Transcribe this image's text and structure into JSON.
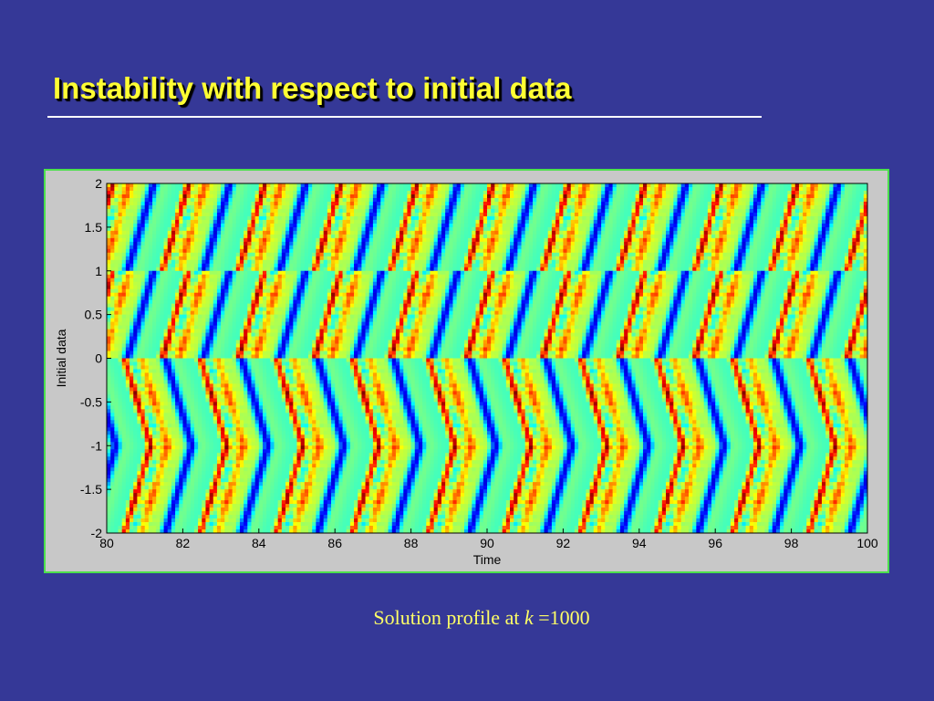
{
  "slide": {
    "title": "Instability with respect to initial data",
    "caption": {
      "prefix": "Solution profile at ",
      "variable": "k",
      "suffix": " =1000"
    }
  },
  "colors": {
    "background": "#353897",
    "title": "#ffff33",
    "caption": "#ffff66",
    "frame_border": "#4ce04c",
    "colormap": "jet"
  },
  "chart_data": {
    "type": "heatmap",
    "title": "",
    "xlabel": "Time",
    "ylabel": "Initial data",
    "xlim": [
      80,
      100
    ],
    "ylim": [
      -2,
      2
    ],
    "x_ticks": [
      80,
      82,
      84,
      86,
      88,
      90,
      92,
      94,
      96,
      98,
      100
    ],
    "y_ticks": [
      2,
      1.5,
      1,
      0.5,
      0,
      -0.5,
      -1,
      -1.5,
      -2
    ],
    "y_tick_labels": [
      "2",
      "1.5",
      "1",
      "0.5",
      "0",
      "-0.5",
      "-1",
      "-1.5",
      "-2"
    ],
    "colormap": "jet",
    "period": 2,
    "bands": [
      {
        "y_range": [
          1.0,
          2.0
        ],
        "phase": 0.0,
        "sign": 1
      },
      {
        "y_range": [
          0.0,
          1.0
        ],
        "phase": 0.0,
        "sign": 1
      },
      {
        "y_range": [
          -1.0,
          0.0
        ],
        "phase": 0.5,
        "sign": -1
      },
      {
        "y_range": [
          -2.0,
          -1.0
        ],
        "phase": 0.5,
        "sign": 1
      }
    ],
    "grid": false,
    "legend": "none"
  }
}
